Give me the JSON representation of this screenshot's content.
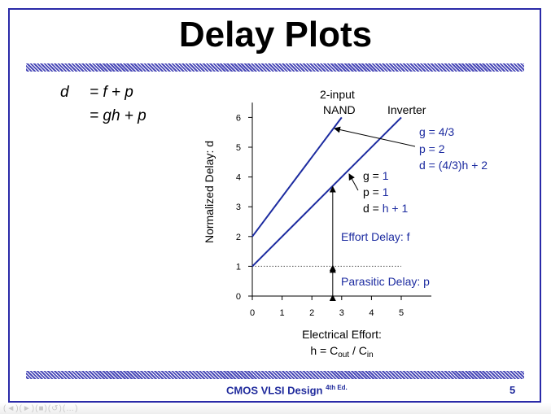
{
  "slide": {
    "title": "Delay Plots",
    "footer_title": "CMOS VLSI Design",
    "footer_edition": "4th Ed.",
    "page_number": "5",
    "ghost_controls": "(◄)(►)(■)(↺)(…)"
  },
  "equations": {
    "d": "d",
    "line1_rhs": "= f + p",
    "line2_rhs": "= gh + p"
  },
  "chart_data": {
    "type": "line",
    "xlabel_line1": "Electrical Effort:",
    "xlabel_line2_base": "h = C",
    "xlabel_line2_sub1": "out",
    "xlabel_line2_mid": " / C",
    "xlabel_line2_sub2": "in",
    "ylabel": "Normalized Delay: d",
    "xlim": [
      0,
      6
    ],
    "ylim": [
      0,
      6.5
    ],
    "xticks": [
      0,
      1,
      2,
      3,
      4,
      5
    ],
    "yticks": [
      0,
      1,
      2,
      3,
      4,
      5,
      6
    ],
    "grid": false,
    "series": [
      {
        "name": "2-input NAND",
        "x": [
          0,
          3
        ],
        "y": [
          2,
          6
        ],
        "color": "#1c2ba0"
      },
      {
        "name": "Inverter",
        "x": [
          0,
          5
        ],
        "y": [
          1,
          6
        ],
        "color": "#1c2ba0"
      }
    ],
    "labels": {
      "nand_line1": "2-input",
      "nand_line2": "NAND",
      "inverter": "Inverter"
    },
    "annotations": {
      "nand_g": "g = 4/3",
      "nand_p": "p = 2",
      "nand_d": "d = (4/3)h + 2",
      "inv_g_lbl": "g = ",
      "inv_g_val": "1",
      "inv_p_lbl": "p = ",
      "inv_p_val": "1",
      "inv_d_lbl": "d = ",
      "inv_d_val": "h + 1",
      "effort": "Effort Delay: f",
      "parasitic": "Parasitic Delay: p"
    },
    "reference_line_y": 1
  }
}
